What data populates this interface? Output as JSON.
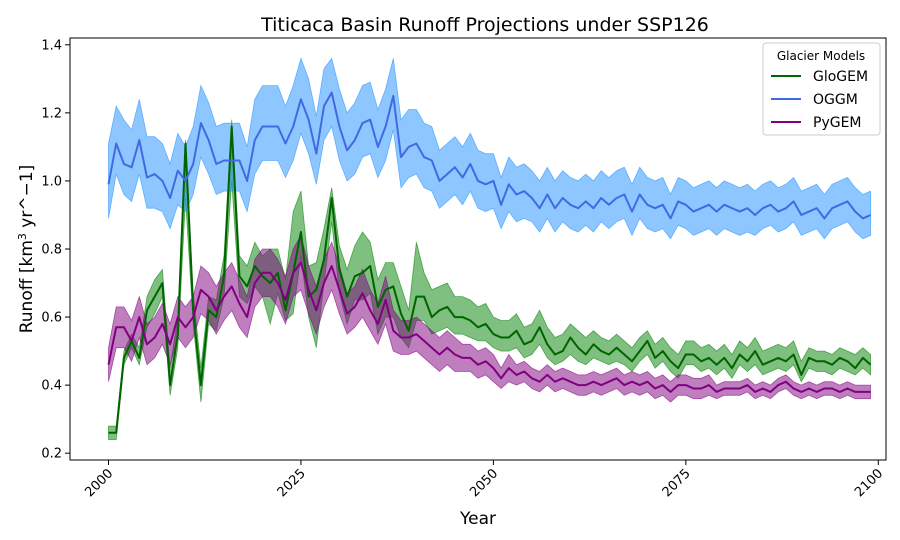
{
  "chart_data": {
    "type": "line",
    "title": "Titicaca Basin Runoff Projections under SSP126",
    "xlabel": "Year",
    "ylabel_main": "Runoff [km",
    "ylabel_sup": "3",
    "ylabel_rest": " yr^−1]",
    "xlim": [
      1995,
      2101
    ],
    "ylim": [
      0.18,
      1.42
    ],
    "x_ticks": [
      2000,
      2025,
      2050,
      2075,
      2100
    ],
    "y_ticks": [
      0.2,
      0.4,
      0.6,
      0.8,
      1.0,
      1.2,
      1.4
    ],
    "x_tick_labels": [
      "2000",
      "2025",
      "2050",
      "2075",
      "2100"
    ],
    "y_tick_labels": [
      "0.2",
      "0.4",
      "0.6",
      "0.8",
      "1.0",
      "1.2",
      "1.4"
    ],
    "legend": {
      "title": "Glacier Models",
      "placement": "top-right"
    },
    "x": [
      2000,
      2001,
      2002,
      2003,
      2004,
      2005,
      2006,
      2007,
      2008,
      2009,
      2010,
      2011,
      2012,
      2013,
      2014,
      2015,
      2016,
      2017,
      2018,
      2019,
      2020,
      2021,
      2022,
      2023,
      2024,
      2025,
      2026,
      2027,
      2028,
      2029,
      2030,
      2031,
      2032,
      2033,
      2034,
      2035,
      2036,
      2037,
      2038,
      2039,
      2040,
      2041,
      2042,
      2043,
      2044,
      2045,
      2046,
      2047,
      2048,
      2049,
      2050,
      2051,
      2052,
      2053,
      2054,
      2055,
      2056,
      2057,
      2058,
      2059,
      2060,
      2061,
      2062,
      2063,
      2064,
      2065,
      2066,
      2067,
      2068,
      2069,
      2070,
      2071,
      2072,
      2073,
      2074,
      2075,
      2076,
      2077,
      2078,
      2079,
      2080,
      2081,
      2082,
      2083,
      2084,
      2085,
      2086,
      2087,
      2088,
      2089,
      2090,
      2091,
      2092,
      2093,
      2094,
      2095,
      2096,
      2097,
      2098,
      2099
    ],
    "series": [
      {
        "name": "GloGEM",
        "color": "#006400",
        "fill_color": "#008000",
        "values": [
          0.26,
          0.26,
          0.48,
          0.53,
          0.48,
          0.62,
          0.66,
          0.7,
          0.4,
          0.55,
          1.11,
          0.62,
          0.4,
          0.62,
          0.6,
          0.72,
          1.16,
          0.72,
          0.69,
          0.75,
          0.72,
          0.7,
          0.73,
          0.62,
          0.73,
          0.85,
          0.66,
          0.68,
          0.77,
          0.95,
          0.74,
          0.66,
          0.72,
          0.73,
          0.75,
          0.63,
          0.68,
          0.69,
          0.61,
          0.56,
          0.66,
          0.66,
          0.6,
          0.62,
          0.63,
          0.6,
          0.6,
          0.59,
          0.57,
          0.58,
          0.55,
          0.54,
          0.54,
          0.56,
          0.52,
          0.53,
          0.57,
          0.52,
          0.49,
          0.5,
          0.54,
          0.51,
          0.49,
          0.52,
          0.5,
          0.49,
          0.51,
          0.49,
          0.47,
          0.5,
          0.53,
          0.48,
          0.5,
          0.47,
          0.45,
          0.49,
          0.49,
          0.47,
          0.48,
          0.46,
          0.48,
          0.45,
          0.49,
          0.47,
          0.5,
          0.46,
          0.47,
          0.48,
          0.47,
          0.49,
          0.43,
          0.48,
          0.47,
          0.47,
          0.46,
          0.48,
          0.47,
          0.45,
          0.48,
          0.46
        ],
        "lower": [
          0.24,
          0.24,
          0.46,
          0.51,
          0.46,
          0.57,
          0.61,
          0.66,
          0.37,
          0.51,
          0.95,
          0.58,
          0.35,
          0.58,
          0.56,
          0.66,
          1.0,
          0.66,
          0.64,
          0.69,
          0.66,
          0.58,
          0.67,
          0.59,
          0.61,
          0.78,
          0.6,
          0.51,
          0.7,
          0.88,
          0.67,
          0.58,
          0.65,
          0.65,
          0.67,
          0.55,
          0.6,
          0.6,
          0.54,
          0.51,
          0.59,
          0.59,
          0.55,
          0.56,
          0.57,
          0.55,
          0.55,
          0.54,
          0.53,
          0.53,
          0.51,
          0.5,
          0.5,
          0.51,
          0.48,
          0.49,
          0.52,
          0.48,
          0.46,
          0.47,
          0.49,
          0.47,
          0.46,
          0.48,
          0.47,
          0.46,
          0.47,
          0.46,
          0.44,
          0.47,
          0.49,
          0.45,
          0.47,
          0.44,
          0.42,
          0.46,
          0.46,
          0.44,
          0.45,
          0.43,
          0.45,
          0.42,
          0.46,
          0.44,
          0.46,
          0.43,
          0.44,
          0.45,
          0.44,
          0.46,
          0.41,
          0.45,
          0.44,
          0.44,
          0.43,
          0.45,
          0.44,
          0.43,
          0.45,
          0.43
        ],
        "upper": [
          0.28,
          0.28,
          0.5,
          0.55,
          0.51,
          0.66,
          0.71,
          0.74,
          0.45,
          0.6,
          1.12,
          0.67,
          0.45,
          0.66,
          0.65,
          0.78,
          1.18,
          0.78,
          0.75,
          0.82,
          0.78,
          0.8,
          0.8,
          0.71,
          0.91,
          0.97,
          0.75,
          0.76,
          0.86,
          0.98,
          0.81,
          0.74,
          0.81,
          0.85,
          0.82,
          0.71,
          0.76,
          0.76,
          0.69,
          0.62,
          0.82,
          0.73,
          0.68,
          0.69,
          0.7,
          0.66,
          0.66,
          0.65,
          0.63,
          0.64,
          0.6,
          0.59,
          0.59,
          0.61,
          0.57,
          0.58,
          0.62,
          0.57,
          0.54,
          0.55,
          0.58,
          0.56,
          0.54,
          0.56,
          0.54,
          0.53,
          0.55,
          0.53,
          0.51,
          0.54,
          0.56,
          0.52,
          0.54,
          0.51,
          0.49,
          0.53,
          0.53,
          0.51,
          0.52,
          0.5,
          0.52,
          0.49,
          0.53,
          0.51,
          0.54,
          0.5,
          0.51,
          0.52,
          0.51,
          0.53,
          0.47,
          0.51,
          0.5,
          0.5,
          0.49,
          0.51,
          0.5,
          0.49,
          0.51,
          0.49
        ]
      },
      {
        "name": "OGGM",
        "color": "#4169E1",
        "fill_color": "#1E90FF",
        "values": [
          0.99,
          1.11,
          1.05,
          1.04,
          1.12,
          1.01,
          1.02,
          1.0,
          0.95,
          1.03,
          1.0,
          1.05,
          1.17,
          1.12,
          1.05,
          1.06,
          1.06,
          1.06,
          1.0,
          1.12,
          1.16,
          1.16,
          1.16,
          1.11,
          1.16,
          1.24,
          1.18,
          1.08,
          1.22,
          1.26,
          1.16,
          1.09,
          1.12,
          1.17,
          1.18,
          1.1,
          1.16,
          1.25,
          1.07,
          1.1,
          1.11,
          1.07,
          1.06,
          1.0,
          1.02,
          1.04,
          1.01,
          1.05,
          1.0,
          0.99,
          1.0,
          0.93,
          0.99,
          0.96,
          0.97,
          0.95,
          0.92,
          0.96,
          0.92,
          0.95,
          0.93,
          0.92,
          0.94,
          0.92,
          0.95,
          0.93,
          0.95,
          0.96,
          0.91,
          0.96,
          0.93,
          0.92,
          0.93,
          0.89,
          0.94,
          0.93,
          0.91,
          0.92,
          0.93,
          0.91,
          0.93,
          0.92,
          0.91,
          0.92,
          0.9,
          0.92,
          0.93,
          0.91,
          0.92,
          0.94,
          0.9,
          0.91,
          0.92,
          0.89,
          0.92,
          0.93,
          0.94,
          0.91,
          0.89,
          0.9
        ],
        "lower": [
          0.89,
          1.02,
          0.96,
          0.94,
          1.02,
          0.92,
          0.92,
          0.91,
          0.86,
          0.93,
          0.91,
          0.96,
          1.07,
          1.02,
          0.96,
          0.97,
          0.97,
          0.97,
          0.91,
          1.02,
          1.06,
          1.06,
          1.06,
          1.01,
          1.06,
          1.14,
          1.08,
          0.99,
          1.12,
          1.16,
          1.06,
          1.0,
          1.02,
          1.07,
          1.08,
          1.01,
          1.06,
          1.15,
          0.98,
          1.01,
          1.02,
          0.98,
          0.97,
          0.92,
          0.94,
          0.96,
          0.93,
          0.97,
          0.92,
          0.91,
          0.92,
          0.86,
          0.91,
          0.88,
          0.89,
          0.88,
          0.85,
          0.89,
          0.85,
          0.88,
          0.86,
          0.85,
          0.87,
          0.85,
          0.88,
          0.86,
          0.88,
          0.89,
          0.84,
          0.89,
          0.86,
          0.85,
          0.86,
          0.83,
          0.87,
          0.86,
          0.84,
          0.85,
          0.86,
          0.84,
          0.86,
          0.85,
          0.84,
          0.85,
          0.84,
          0.86,
          0.87,
          0.85,
          0.86,
          0.88,
          0.84,
          0.85,
          0.86,
          0.83,
          0.86,
          0.87,
          0.88,
          0.85,
          0.83,
          0.84
        ],
        "upper": [
          1.11,
          1.22,
          1.18,
          1.15,
          1.24,
          1.13,
          1.13,
          1.11,
          1.05,
          1.14,
          1.1,
          1.16,
          1.28,
          1.23,
          1.16,
          1.17,
          1.17,
          1.17,
          1.1,
          1.24,
          1.28,
          1.28,
          1.28,
          1.22,
          1.28,
          1.36,
          1.3,
          1.19,
          1.33,
          1.36,
          1.27,
          1.2,
          1.23,
          1.28,
          1.29,
          1.21,
          1.27,
          1.36,
          1.18,
          1.21,
          1.21,
          1.17,
          1.16,
          1.09,
          1.11,
          1.13,
          1.1,
          1.14,
          1.09,
          1.08,
          1.08,
          1.01,
          1.07,
          1.04,
          1.05,
          1.03,
          1.0,
          1.04,
          1.0,
          1.03,
          1.01,
          1.0,
          1.02,
          1.0,
          1.03,
          1.01,
          1.03,
          1.04,
          0.99,
          1.04,
          1.01,
          1.0,
          1.01,
          0.96,
          1.01,
          1.0,
          0.98,
          0.99,
          1.0,
          0.98,
          1.0,
          0.99,
          0.98,
          0.99,
          0.97,
          0.99,
          1.0,
          0.98,
          0.99,
          1.01,
          0.97,
          0.98,
          0.99,
          0.96,
          0.99,
          1.0,
          1.01,
          0.98,
          0.96,
          0.97
        ]
      },
      {
        "name": "PyGEM",
        "color": "#800080",
        "fill_color": "#800080",
        "values": [
          0.46,
          0.57,
          0.57,
          0.53,
          0.6,
          0.52,
          0.54,
          0.58,
          0.52,
          0.6,
          0.57,
          0.6,
          0.68,
          0.66,
          0.62,
          0.66,
          0.69,
          0.64,
          0.6,
          0.7,
          0.73,
          0.73,
          0.7,
          0.65,
          0.73,
          0.76,
          0.68,
          0.62,
          0.7,
          0.75,
          0.68,
          0.61,
          0.63,
          0.67,
          0.62,
          0.58,
          0.65,
          0.56,
          0.54,
          0.54,
          0.55,
          0.53,
          0.51,
          0.49,
          0.51,
          0.49,
          0.48,
          0.48,
          0.46,
          0.47,
          0.45,
          0.42,
          0.45,
          0.43,
          0.44,
          0.42,
          0.41,
          0.43,
          0.41,
          0.42,
          0.41,
          0.4,
          0.4,
          0.41,
          0.4,
          0.41,
          0.42,
          0.4,
          0.41,
          0.4,
          0.41,
          0.39,
          0.4,
          0.38,
          0.4,
          0.4,
          0.39,
          0.39,
          0.4,
          0.38,
          0.39,
          0.39,
          0.39,
          0.4,
          0.38,
          0.39,
          0.38,
          0.4,
          0.41,
          0.39,
          0.38,
          0.39,
          0.38,
          0.39,
          0.39,
          0.38,
          0.39,
          0.38,
          0.38,
          0.38
        ],
        "lower": [
          0.41,
          0.51,
          0.51,
          0.47,
          0.54,
          0.46,
          0.48,
          0.52,
          0.46,
          0.54,
          0.51,
          0.54,
          0.61,
          0.59,
          0.55,
          0.59,
          0.62,
          0.57,
          0.54,
          0.63,
          0.66,
          0.66,
          0.63,
          0.58,
          0.66,
          0.68,
          0.61,
          0.55,
          0.63,
          0.68,
          0.61,
          0.55,
          0.57,
          0.6,
          0.56,
          0.52,
          0.58,
          0.5,
          0.49,
          0.49,
          0.5,
          0.48,
          0.46,
          0.44,
          0.46,
          0.44,
          0.44,
          0.44,
          0.42,
          0.43,
          0.41,
          0.39,
          0.41,
          0.4,
          0.41,
          0.39,
          0.38,
          0.4,
          0.38,
          0.39,
          0.38,
          0.37,
          0.37,
          0.38,
          0.37,
          0.38,
          0.39,
          0.37,
          0.38,
          0.37,
          0.38,
          0.36,
          0.37,
          0.35,
          0.37,
          0.37,
          0.36,
          0.36,
          0.37,
          0.36,
          0.37,
          0.37,
          0.37,
          0.38,
          0.36,
          0.37,
          0.36,
          0.38,
          0.39,
          0.37,
          0.36,
          0.37,
          0.36,
          0.37,
          0.37,
          0.36,
          0.37,
          0.36,
          0.36,
          0.36
        ],
        "upper": [
          0.51,
          0.63,
          0.63,
          0.59,
          0.66,
          0.58,
          0.6,
          0.64,
          0.58,
          0.66,
          0.63,
          0.66,
          0.75,
          0.73,
          0.69,
          0.73,
          0.76,
          0.71,
          0.66,
          0.77,
          0.8,
          0.8,
          0.77,
          0.72,
          0.8,
          0.84,
          0.75,
          0.69,
          0.77,
          0.82,
          0.75,
          0.67,
          0.69,
          0.74,
          0.68,
          0.64,
          0.72,
          0.62,
          0.59,
          0.59,
          0.6,
          0.58,
          0.56,
          0.54,
          0.56,
          0.54,
          0.52,
          0.52,
          0.5,
          0.51,
          0.49,
          0.45,
          0.49,
          0.46,
          0.47,
          0.45,
          0.44,
          0.46,
          0.44,
          0.45,
          0.44,
          0.43,
          0.43,
          0.44,
          0.43,
          0.44,
          0.45,
          0.43,
          0.44,
          0.43,
          0.44,
          0.42,
          0.43,
          0.41,
          0.43,
          0.43,
          0.42,
          0.42,
          0.43,
          0.4,
          0.41,
          0.41,
          0.41,
          0.42,
          0.4,
          0.41,
          0.4,
          0.42,
          0.43,
          0.41,
          0.4,
          0.41,
          0.4,
          0.41,
          0.41,
          0.4,
          0.41,
          0.4,
          0.4,
          0.4
        ]
      }
    ]
  }
}
